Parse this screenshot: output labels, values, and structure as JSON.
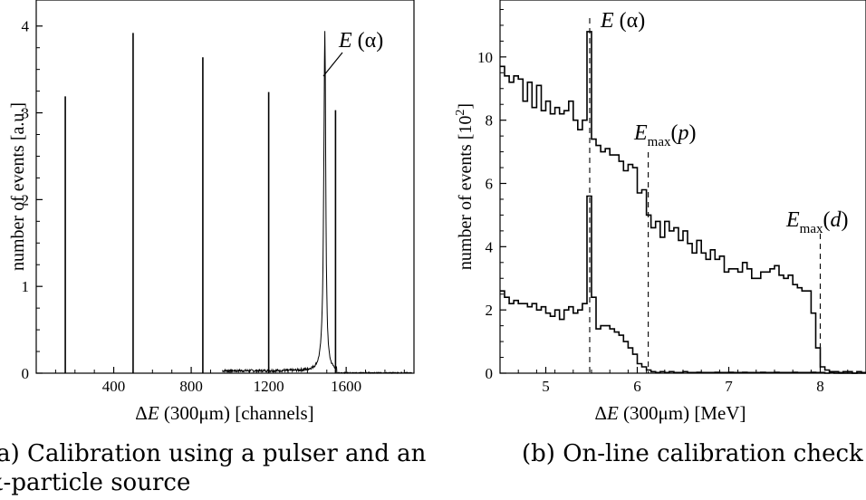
{
  "chart_data": [
    {
      "type": "line",
      "caption_line1": "(a) Calibration using a pulser and an",
      "caption_line2": "α-particle source",
      "xlabel_pre": "Δ",
      "xlabel_var": "E",
      "xlabel_post": " (300μm)  [channels]",
      "ylabel": "number of events  [a.u.]",
      "xlim": [
        0,
        1950
      ],
      "ylim": [
        0,
        4.3
      ],
      "xticks": [
        400,
        800,
        1200,
        1600
      ],
      "yticks": [
        0,
        1,
        2,
        3,
        4
      ],
      "annotation": {
        "var": "E",
        "text": " (α)",
        "x": 1490,
        "y": 3.55
      },
      "pulser_peaks": [
        {
          "x": 150,
          "height": 3.19
        },
        {
          "x": 500,
          "height": 3.92
        },
        {
          "x": 860,
          "height": 3.64
        },
        {
          "x": 1200,
          "height": 3.24
        },
        {
          "x": 1545,
          "height": 3.03
        }
      ],
      "alpha_peak": {
        "x": 1490,
        "height": 3.92,
        "width": 12,
        "background_start": 960,
        "background_level": 0.025
      }
    },
    {
      "type": "line",
      "caption": "(b) On-line calibration check",
      "xlabel_pre": "Δ",
      "xlabel_var": "E",
      "xlabel_post": " (300μm)  [MeV]",
      "ylabel": "number of events [10",
      "ylabel_sup": "2",
      "ylabel_end": "]",
      "xlim": [
        4.5,
        8.5
      ],
      "ylim": [
        0,
        11.8
      ],
      "xticks": [
        5,
        6,
        7,
        8
      ],
      "yticks": [
        0,
        2,
        4,
        6,
        8,
        10
      ],
      "markers": [
        {
          "x": 5.48,
          "label_var": "E",
          "label_text": " (α)",
          "sub": ""
        },
        {
          "x": 6.12,
          "label_var": "E",
          "label_text": "(p)",
          "sub": "max",
          "inner_var": "p"
        },
        {
          "x": 8.0,
          "label_var": "E",
          "label_text": "(d)",
          "sub": "max",
          "inner_var": "d"
        }
      ],
      "series": [
        {
          "x": [
            4.5,
            4.55,
            4.6,
            4.65,
            4.7,
            4.75,
            4.8,
            4.85,
            4.9,
            4.95,
            5.0,
            5.05,
            5.1,
            5.15,
            5.2,
            5.25,
            5.3,
            5.35,
            5.4,
            5.45,
            5.5,
            5.55,
            5.6,
            5.65,
            5.7,
            5.75,
            5.8,
            5.85,
            5.9,
            5.95,
            6.0,
            6.05,
            6.1,
            6.15,
            6.2,
            6.25,
            6.3,
            6.35,
            6.4,
            6.45,
            6.5,
            6.55,
            6.6,
            6.65,
            6.7,
            6.75,
            6.8,
            6.85,
            6.9,
            6.95,
            7.0,
            7.05,
            7.1,
            7.15,
            7.2,
            7.25,
            7.3,
            7.35,
            7.4,
            7.45,
            7.5,
            7.55,
            7.6,
            7.65,
            7.7,
            7.75,
            7.8,
            7.85,
            7.9,
            7.95,
            8.0,
            8.05,
            8.1,
            8.15,
            8.2,
            8.25,
            8.3,
            8.35,
            8.4,
            8.45
          ],
          "values": [
            9.7,
            9.4,
            9.2,
            9.4,
            9.3,
            8.6,
            9.2,
            8.4,
            9.1,
            8.3,
            8.6,
            8.2,
            8.4,
            8.2,
            8.3,
            8.6,
            8.0,
            7.7,
            8.0,
            10.8,
            7.4,
            7.2,
            7.0,
            7.1,
            6.9,
            6.9,
            6.7,
            6.4,
            6.6,
            6.5,
            5.7,
            5.8,
            5.0,
            4.6,
            4.8,
            4.3,
            4.8,
            4.5,
            4.6,
            4.2,
            4.5,
            4.1,
            3.8,
            4.2,
            3.8,
            3.6,
            3.9,
            3.6,
            3.7,
            3.2,
            3.3,
            3.3,
            3.2,
            3.5,
            3.3,
            3.0,
            3.0,
            3.2,
            3.2,
            3.3,
            3.4,
            3.1,
            3.0,
            3.1,
            2.8,
            2.7,
            2.6,
            2.6,
            1.9,
            0.8,
            0.2,
            0.1,
            0.05,
            0.05,
            0.02,
            0.05,
            0.05,
            0.0,
            0.05,
            0.02
          ]
        },
        {
          "x": [
            4.5,
            4.55,
            4.6,
            4.65,
            4.7,
            4.75,
            4.8,
            4.85,
            4.9,
            4.95,
            5.0,
            5.05,
            5.1,
            5.15,
            5.2,
            5.25,
            5.3,
            5.35,
            5.4,
            5.45,
            5.5,
            5.55,
            5.6,
            5.65,
            5.7,
            5.75,
            5.8,
            5.85,
            5.9,
            5.95,
            6.0,
            6.05,
            6.1,
            6.15,
            6.2,
            6.25,
            6.3,
            6.35,
            6.4,
            6.45,
            6.5,
            6.55,
            6.6,
            6.65,
            6.7,
            6.75,
            6.8,
            6.85,
            6.9,
            6.95,
            7.0,
            7.05,
            7.1,
            7.15,
            7.2,
            7.25,
            7.3,
            7.35,
            7.4,
            7.45,
            7.5,
            7.55,
            7.6,
            7.65,
            7.7,
            7.75,
            7.8,
            7.85,
            7.9,
            7.95,
            8.0,
            8.05,
            8.1,
            8.15,
            8.2,
            8.25,
            8.3,
            8.35,
            8.4,
            8.45
          ],
          "values": [
            2.6,
            2.4,
            2.2,
            2.3,
            2.2,
            2.2,
            2.1,
            2.2,
            2.0,
            2.1,
            1.9,
            1.8,
            2.0,
            1.7,
            2.0,
            2.1,
            1.9,
            2.0,
            2.2,
            5.6,
            2.4,
            1.4,
            1.5,
            1.5,
            1.4,
            1.3,
            1.2,
            1.0,
            0.8,
            0.6,
            0.3,
            0.2,
            0.1,
            0.05,
            0.02,
            0.05,
            0.02,
            0.05,
            0.02,
            0.02,
            0.05,
            0.02,
            0.02,
            0.03,
            0.02,
            0.02,
            0.02,
            0.03,
            0.02,
            0.02,
            0.03,
            0.02,
            0.02,
            0.03,
            0.02,
            0.02,
            0.02,
            0.03,
            0.02,
            0.02,
            0.03,
            0.02,
            0.02,
            0.02,
            0.03,
            0.02,
            0.02,
            0.02,
            0.03,
            0.02,
            0.02,
            0.0,
            0.02,
            0.0,
            0.0,
            0.0,
            0.0,
            0.0,
            0.0,
            0.0
          ]
        }
      ]
    }
  ]
}
